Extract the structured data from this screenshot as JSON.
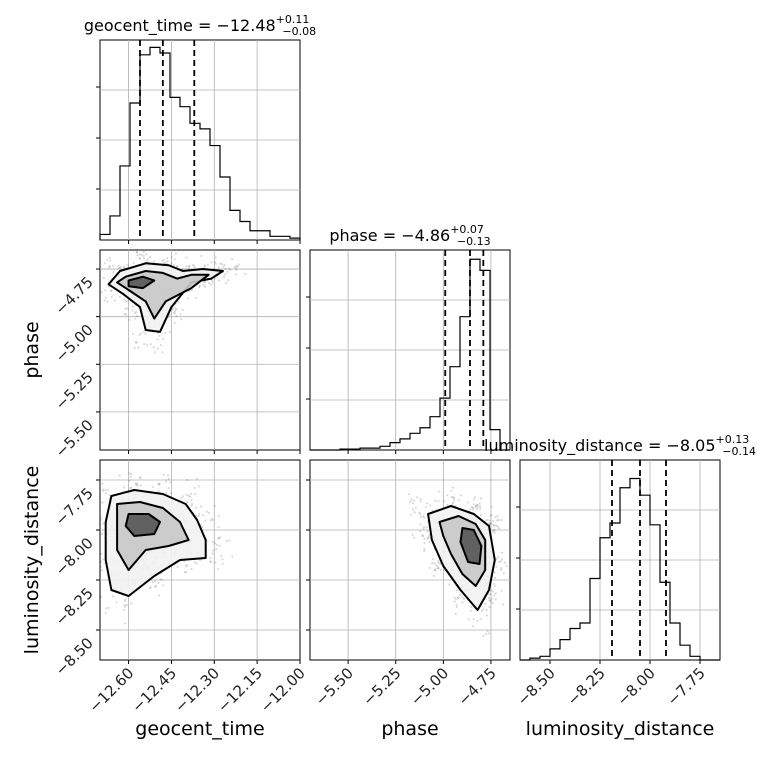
{
  "chart_data": {
    "type": "corner",
    "parameters": [
      {
        "name": "geocent_time",
        "median": -12.48,
        "upper_err": 0.11,
        "lower_err": 0.08,
        "quantiles": [
          -12.56,
          -12.48,
          -12.37
        ],
        "range": [
          -12.7,
          -12.0
        ]
      },
      {
        "name": "phase",
        "median": -4.86,
        "upper_err": 0.07,
        "lower_err": 0.13,
        "quantiles": [
          -4.99,
          -4.86,
          -4.79
        ],
        "range": [
          -5.7,
          -4.65
        ]
      },
      {
        "name": "luminosity_distance",
        "median": -8.05,
        "upper_err": 0.13,
        "lower_err": 0.14,
        "quantiles": [
          -8.19,
          -8.05,
          -7.92
        ],
        "range": [
          -8.65,
          -7.65
        ]
      }
    ],
    "titles": [
      {
        "main": "geocent_time = −12.48",
        "sup": "+0.11",
        "sub": "−0.08"
      },
      {
        "main": "phase = −4.86",
        "sup": "+0.07",
        "sub": "−0.13"
      },
      {
        "main": "luminosity_distance = −8.05",
        "sup": "+0.13",
        "sub": "−0.14"
      }
    ],
    "axis_labels": {
      "x": [
        "geocent_time",
        "phase",
        "luminosity_distance"
      ],
      "y": [
        "phase",
        "luminosity_distance"
      ]
    },
    "ticks": {
      "geocent_time": {
        "values": [
          -12.6,
          -12.45,
          -12.3,
          -12.15,
          -12.0
        ],
        "labels": [
          "−12.60",
          "−12.45",
          "−12.30",
          "−12.15",
          "−12.00"
        ]
      },
      "phase": {
        "values": [
          -5.5,
          -5.25,
          -5.0,
          -4.75
        ],
        "labels": [
          "−5.50",
          "−5.25",
          "−5.00",
          "−4.75"
        ]
      },
      "luminosity_distance": {
        "values": [
          -8.5,
          -8.25,
          -8.0,
          -7.75
        ],
        "labels": [
          "−8.50",
          "−8.25",
          "−8.00",
          "−7.75"
        ]
      }
    },
    "histograms": [
      {
        "edges_from": -12.7,
        "edges_to": -12.0,
        "counts": [
          0.03,
          0.13,
          0.4,
          0.74,
          1.0,
          1.04,
          1.01,
          0.77,
          0.72,
          0.63,
          0.6,
          0.51,
          0.34,
          0.16,
          0.1,
          0.05,
          0.05,
          0.02,
          0.02,
          0.01
        ]
      },
      {
        "edges_from": -5.7,
        "edges_to": -4.65,
        "counts": [
          0.0,
          0.0,
          0.0,
          0.005,
          0.005,
          0.01,
          0.01,
          0.02,
          0.04,
          0.06,
          0.09,
          0.12,
          0.18,
          0.28,
          0.45,
          0.72,
          1.03,
          0.97,
          0.11,
          0.0
        ]
      },
      {
        "edges_from": -8.65,
        "edges_to": -7.65,
        "counts": [
          0.0,
          0.01,
          0.02,
          0.06,
          0.11,
          0.17,
          0.2,
          0.44,
          0.66,
          0.74,
          0.93,
          0.98,
          0.89,
          0.73,
          0.42,
          0.2,
          0.08,
          0.02,
          0.0,
          0.0
        ]
      }
    ],
    "hist2d_cores": [
      {
        "x_param": "geocent_time",
        "y_param": "phase",
        "levels": [
          [
            [
              -12.63,
              -4.76
            ],
            [
              -12.54,
              -4.72
            ],
            [
              -12.46,
              -4.73
            ],
            [
              -12.41,
              -4.76
            ],
            [
              -12.34,
              -4.75
            ],
            [
              -12.27,
              -4.76
            ],
            [
              -12.31,
              -4.8
            ],
            [
              -12.38,
              -4.82
            ],
            [
              -12.45,
              -4.95
            ],
            [
              -12.49,
              -5.08
            ],
            [
              -12.54,
              -5.07
            ],
            [
              -12.56,
              -4.95
            ],
            [
              -12.62,
              -4.88
            ],
            [
              -12.67,
              -4.83
            ]
          ],
          [
            [
              -12.61,
              -4.79
            ],
            [
              -12.54,
              -4.76
            ],
            [
              -12.48,
              -4.77
            ],
            [
              -12.43,
              -4.8
            ],
            [
              -12.38,
              -4.78
            ],
            [
              -12.32,
              -4.78
            ],
            [
              -12.38,
              -4.85
            ],
            [
              -12.47,
              -4.92
            ],
            [
              -12.51,
              -5.01
            ],
            [
              -12.54,
              -4.92
            ],
            [
              -12.6,
              -4.86
            ],
            [
              -12.64,
              -4.82
            ]
          ],
          [
            [
              -12.6,
              -4.81
            ],
            [
              -12.55,
              -4.79
            ],
            [
              -12.51,
              -4.81
            ],
            [
              -12.55,
              -4.85
            ],
            [
              -12.6,
              -4.84
            ]
          ]
        ]
      },
      {
        "x_param": "geocent_time",
        "y_param": "luminosity_distance",
        "levels": [
          [
            [
              -12.66,
              -7.83
            ],
            [
              -12.58,
              -7.8
            ],
            [
              -12.48,
              -7.82
            ],
            [
              -12.4,
              -7.87
            ],
            [
              -12.36,
              -7.95
            ],
            [
              -12.33,
              -8.05
            ],
            [
              -12.33,
              -8.14
            ],
            [
              -12.42,
              -8.15
            ],
            [
              -12.51,
              -8.23
            ],
            [
              -12.6,
              -8.33
            ],
            [
              -12.66,
              -8.3
            ],
            [
              -12.68,
              -8.15
            ],
            [
              -12.68,
              -7.96
            ]
          ],
          [
            [
              -12.64,
              -7.87
            ],
            [
              -12.56,
              -7.86
            ],
            [
              -12.48,
              -7.89
            ],
            [
              -12.42,
              -7.96
            ],
            [
              -12.39,
              -8.05
            ],
            [
              -12.46,
              -8.08
            ],
            [
              -12.54,
              -8.1
            ],
            [
              -12.6,
              -8.2
            ],
            [
              -12.64,
              -8.1
            ],
            [
              -12.64,
              -7.97
            ]
          ],
          [
            [
              -12.6,
              -7.92
            ],
            [
              -12.53,
              -7.92
            ],
            [
              -12.49,
              -7.96
            ],
            [
              -12.51,
              -8.02
            ],
            [
              -12.58,
              -8.03
            ],
            [
              -12.61,
              -7.98
            ]
          ]
        ]
      },
      {
        "x_param": "phase",
        "y_param": "luminosity_distance",
        "levels": [
          [
            [
              -5.08,
              -7.92
            ],
            [
              -4.96,
              -7.88
            ],
            [
              -4.84,
              -7.92
            ],
            [
              -4.76,
              -7.98
            ],
            [
              -4.73,
              -8.15
            ],
            [
              -4.76,
              -8.3
            ],
            [
              -4.82,
              -8.4
            ],
            [
              -4.91,
              -8.3
            ],
            [
              -5.0,
              -8.18
            ],
            [
              -5.06,
              -8.05
            ]
          ],
          [
            [
              -5.02,
              -7.96
            ],
            [
              -4.92,
              -7.93
            ],
            [
              -4.83,
              -7.97
            ],
            [
              -4.78,
              -8.05
            ],
            [
              -4.78,
              -8.2
            ],
            [
              -4.83,
              -8.28
            ],
            [
              -4.9,
              -8.22
            ],
            [
              -4.96,
              -8.12
            ],
            [
              -5.0,
              -8.03
            ]
          ],
          [
            [
              -4.9,
              -7.99
            ],
            [
              -4.84,
              -8.0
            ],
            [
              -4.8,
              -8.08
            ],
            [
              -4.81,
              -8.17
            ],
            [
              -4.87,
              -8.16
            ],
            [
              -4.91,
              -8.06
            ]
          ]
        ]
      }
    ],
    "grid": true,
    "line_color": "#000000",
    "density_color": "#555555"
  }
}
